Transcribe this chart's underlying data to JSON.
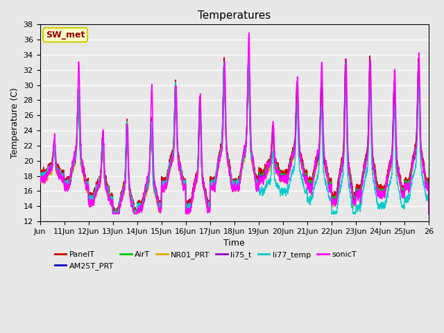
{
  "title": "Temperatures",
  "xlabel": "Time",
  "ylabel": "Temperature (C)",
  "ylim": [
    12,
    38
  ],
  "yticks": [
    12,
    14,
    16,
    18,
    20,
    22,
    24,
    26,
    28,
    30,
    32,
    34,
    36,
    38
  ],
  "series_colors": {
    "PanelT": "#cc0000",
    "AM25T_PRT": "#0000cc",
    "AirT": "#00cc00",
    "NR01_PRT": "#ddaa00",
    "li75_t": "#9900cc",
    "li77_temp": "#00cccc",
    "sonicT": "#ff00ff"
  },
  "annotation_text": "SW_met",
  "annotation_bg": "#ffffcc",
  "annotation_border": "#cccc00",
  "annotation_text_color": "#880000",
  "bg_color": "#e8e8e8",
  "xtick_labels": [
    "Jun",
    "11Jun",
    "12Jun",
    "13Jun",
    "14Jun",
    "15Jun",
    "16Jun",
    "17Jun",
    "18Jun",
    "19Jun",
    "20Jun",
    "21Jun",
    "22Jun",
    "23Jun",
    "24Jun",
    "25Jun",
    "26"
  ]
}
